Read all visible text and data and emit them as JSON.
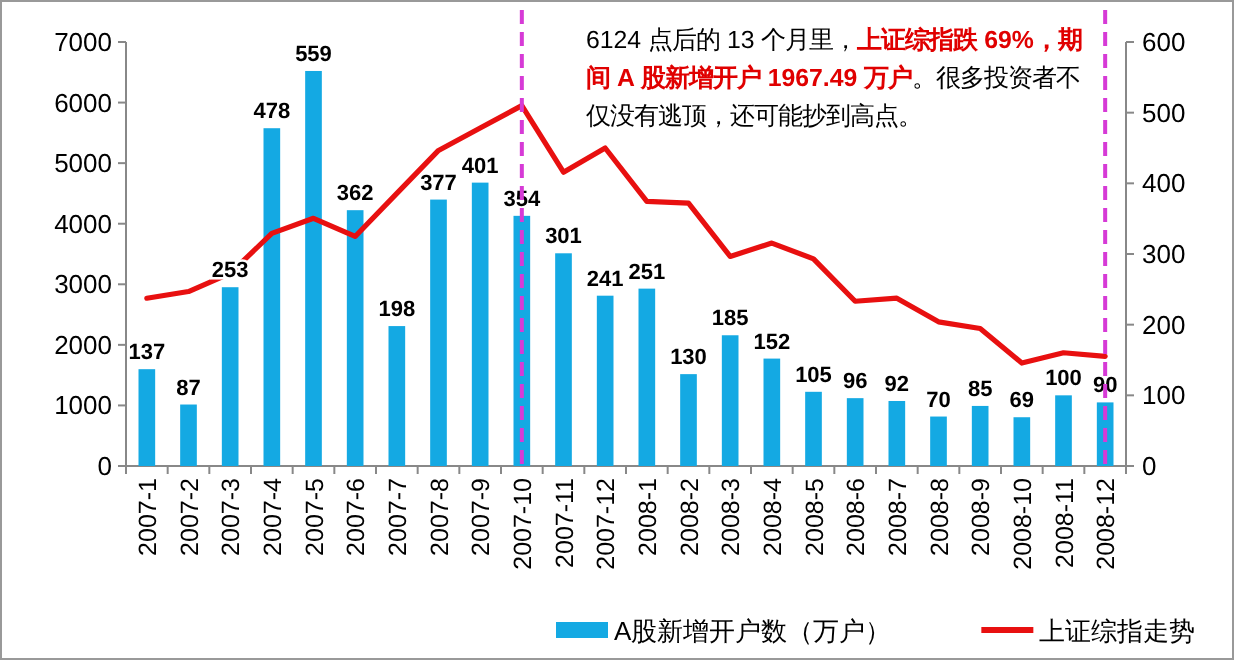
{
  "chart_data": {
    "type": "bar",
    "categories": [
      "2007-1",
      "2007-2",
      "2007-3",
      "2007-4",
      "2007-5",
      "2007-6",
      "2007-7",
      "2007-8",
      "2007-9",
      "2007-10",
      "2007-11",
      "2007-12",
      "2008-1",
      "2008-2",
      "2008-3",
      "2008-4",
      "2008-5",
      "2008-6",
      "2008-7",
      "2008-8",
      "2008-9",
      "2008-10",
      "2008-11",
      "2008-12"
    ],
    "series": [
      {
        "name": "A股新增开户数（万户）",
        "type": "bar",
        "axis": "y2",
        "color": "#14a9e3",
        "data_labels": true,
        "values": [
          137,
          87,
          253,
          478,
          559,
          362,
          198,
          377,
          401,
          354,
          301,
          241,
          251,
          130,
          185,
          152,
          105,
          96,
          92,
          70,
          85,
          69,
          100,
          90
        ]
      },
      {
        "name": "上证综指走势",
        "type": "line",
        "color": "#e81010",
        "values": [
          2770,
          2880,
          3180,
          3840,
          4090,
          3790,
          4500,
          5210,
          5580,
          5950,
          4850,
          5250,
          4370,
          4340,
          3460,
          3680,
          3420,
          2720,
          2770,
          2380,
          2270,
          1700,
          1870,
          1810
        ]
      }
    ],
    "ylim": [
      0,
      7000
    ],
    "yticks": [
      0,
      1000,
      2000,
      3000,
      4000,
      5000,
      6000,
      7000
    ],
    "y2lim": [
      0,
      600
    ],
    "y2ticks": [
      0,
      100,
      200,
      300,
      400,
      500,
      600
    ],
    "ref_lines": [
      {
        "axis": "x",
        "value": "2007-10",
        "color": "#d63ad6",
        "line_style": "dashed"
      },
      {
        "axis": "x",
        "value": "2008-12",
        "color": "#d63ad6",
        "line_style": "dashed"
      }
    ],
    "annotations": [
      "6124 点后的 13 个月里，**上证综指跌 69%，期间 A 股新增开户 1967.49 万户**。很多投资者不仅没有逃顶，还可能抄到高点。"
    ],
    "legend": "bottom",
    "grid": false,
    "marker": "none",
    "line_style": "solid"
  }
}
